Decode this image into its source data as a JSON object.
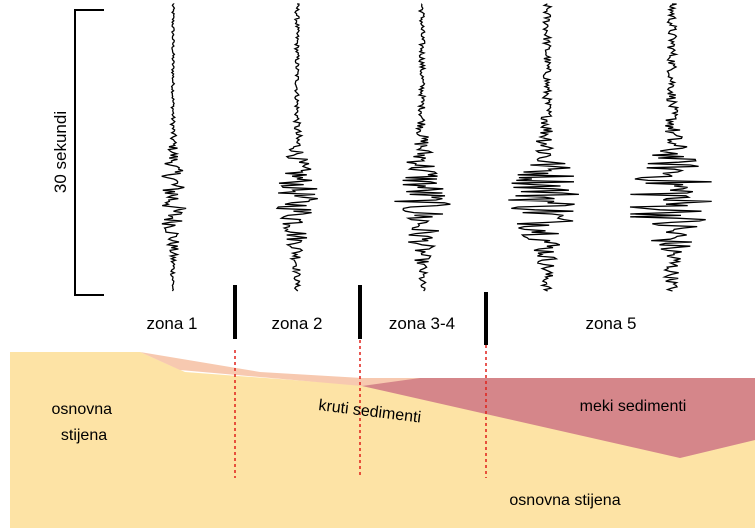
{
  "time_scale": {
    "label": "30 sekundi"
  },
  "zones": [
    {
      "label": "zona 1"
    },
    {
      "label": "zona 2"
    },
    {
      "label": "zona 3-4"
    },
    {
      "label": "zona 5"
    }
  ],
  "layers": {
    "bedrock_left": "osnovna\nstijena",
    "bedrock_bottom": "osnovna stijena",
    "stiff_sediments": "kruti sedimenti",
    "soft_sediments": "meki sedimenti"
  },
  "seismograms": [
    {
      "zone": "zona 1",
      "peak_amplitude": 0.3
    },
    {
      "zone": "zona 2",
      "peak_amplitude": 0.45
    },
    {
      "zone": "zona 3-4",
      "peak_amplitude": 0.6
    },
    {
      "zone": "zona 5",
      "peak_amplitude": 0.85
    },
    {
      "zone": "zona 5",
      "peak_amplitude": 1.0
    }
  ],
  "colors": {
    "bedrock": "#fde3a5",
    "stiff_sediments": "#f7c9b0",
    "soft_sediments": "#d5868a",
    "boundary_line": "#e0201a",
    "trace": "#000000"
  }
}
